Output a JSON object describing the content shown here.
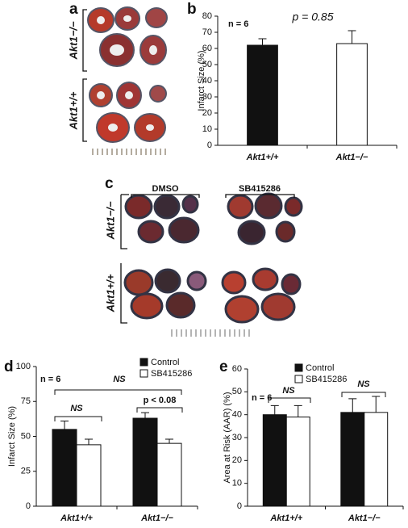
{
  "panel_labels": [
    "a",
    "b",
    "c",
    "d",
    "e"
  ],
  "image_a": {
    "row_labels": [
      "Akt1−/−",
      "Akt1+/+"
    ]
  },
  "image_c": {
    "column_labels": [
      "DMSO",
      "SB415286"
    ],
    "row_labels": [
      "Akt1−/−",
      "Akt1+/+"
    ]
  },
  "chart_data": [
    {
      "type": "bar",
      "y_label": "Infarct Size (%)",
      "categories": [
        "Akt1+/+",
        "Akt1−/−"
      ],
      "series": [
        {
          "values": [
            62,
            63
          ],
          "errors": [
            4,
            8
          ],
          "colors": [
            "#111111",
            "#ffffff"
          ]
        }
      ],
      "ylim": [
        0,
        80
      ],
      "yticks": [
        0,
        10,
        20,
        30,
        40,
        50,
        60,
        70,
        80
      ],
      "annotations": [
        "n = 6",
        "p = 0.85"
      ]
    },
    {
      "type": "bar",
      "y_label": "Infarct Size (%)",
      "categories": [
        "Akt1+/+",
        "Akt1−/−"
      ],
      "series": [
        {
          "name": "Control",
          "color": "#111111",
          "values": [
            55,
            63
          ],
          "errors": [
            6,
            4
          ]
        },
        {
          "name": "SB415286",
          "color": "#ffffff",
          "values": [
            44,
            45
          ],
          "errors": [
            4,
            3
          ]
        }
      ],
      "ylim": [
        0,
        100
      ],
      "yticks": [
        0,
        25,
        50,
        75,
        100
      ],
      "legend": "top-right",
      "annotations": [
        "n = 6",
        "NS",
        "NS",
        "p < 0.08"
      ]
    },
    {
      "type": "bar",
      "y_label": "Area at Risk (AAR) (%)",
      "categories": [
        "Akt1+/+",
        "Akt1−/−"
      ],
      "series": [
        {
          "name": "Control",
          "color": "#111111",
          "values": [
            40,
            41
          ],
          "errors": [
            4,
            6
          ]
        },
        {
          "name": "SB415286",
          "color": "#ffffff",
          "values": [
            39,
            41
          ],
          "errors": [
            5,
            7
          ]
        }
      ],
      "ylim": [
        0,
        60
      ],
      "yticks": [
        0,
        10,
        20,
        30,
        40,
        50,
        60
      ],
      "legend": "top-right",
      "annotations": [
        "n = 6",
        "NS",
        "NS"
      ]
    }
  ]
}
